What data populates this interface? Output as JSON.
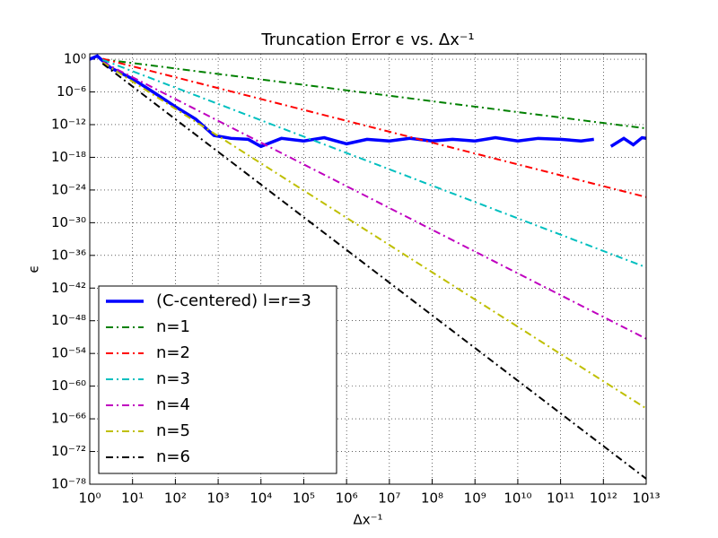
{
  "chart_data": {
    "type": "line",
    "title": "Truncation Error ϵ vs. Δx⁻¹",
    "xlabel": "Δx⁻¹",
    "ylabel": "ϵ",
    "xscale": "log",
    "yscale": "log",
    "grid": true,
    "legend": "lower left",
    "xlim": [
      1,
      10000000000000.0
    ],
    "ylim": [
      1e-78,
      10
    ],
    "xticks": [
      {
        "value": 1,
        "label": "10⁰"
      },
      {
        "value": 10,
        "label": "10¹"
      },
      {
        "value": 100,
        "label": "10²"
      },
      {
        "value": 1000.0,
        "label": "10³"
      },
      {
        "value": 10000.0,
        "label": "10⁴"
      },
      {
        "value": 100000.0,
        "label": "10⁵"
      },
      {
        "value": 1000000.0,
        "label": "10⁶"
      },
      {
        "value": 10000000.0,
        "label": "10⁷"
      },
      {
        "value": 100000000.0,
        "label": "10⁸"
      },
      {
        "value": 1000000000.0,
        "label": "10⁹"
      },
      {
        "value": 10000000000.0,
        "label": "10¹⁰"
      },
      {
        "value": 100000000000.0,
        "label": "10¹¹"
      },
      {
        "value": 1000000000000.0,
        "label": "10¹²"
      },
      {
        "value": 10000000000000.0,
        "label": "10¹³"
      }
    ],
    "yticks": [
      {
        "value": 1,
        "label": "10⁰"
      },
      {
        "value": 1e-06,
        "label": "10⁻⁶"
      },
      {
        "value": 1e-12,
        "label": "10⁻¹²"
      },
      {
        "value": 1e-18,
        "label": "10⁻¹⁸"
      },
      {
        "value": 1e-24,
        "label": "10⁻²⁴"
      },
      {
        "value": 1e-30,
        "label": "10⁻³⁰"
      },
      {
        "value": 1e-36,
        "label": "10⁻³⁶"
      },
      {
        "value": 1e-42,
        "label": "10⁻⁴²"
      },
      {
        "value": 1e-48,
        "label": "10⁻⁴⁸"
      },
      {
        "value": 1e-54,
        "label": "10⁻⁵⁴"
      },
      {
        "value": 1e-60,
        "label": "10⁻⁶⁰"
      },
      {
        "value": 1e-66,
        "label": "10⁻⁶⁶"
      },
      {
        "value": 1e-72,
        "label": "10⁻⁷²"
      },
      {
        "value": 1e-78,
        "label": "10⁻⁷⁸"
      }
    ],
    "series": [
      {
        "name": "(C-centered) l=r=3",
        "color": "#0000ff",
        "style": "solid",
        "x": [
          1,
          1.5,
          3,
          10,
          30,
          100,
          300,
          800,
          2000,
          5000,
          10000.0,
          30000.0,
          100000.0,
          300000.0,
          1000000.0,
          3000000.0,
          10000000.0,
          30000000.0,
          100000000.0,
          300000000.0,
          1000000000.0,
          3000000000.0,
          10000000000.0,
          30000000000.0,
          100000000000.0,
          300000000000.0,
          600000000000.0,
          1000000000000.0,
          1500000000000.0,
          3000000000000.0,
          5000000000000.0,
          8000000000000.0,
          10000000000000.0
        ],
        "values": [
          1,
          4,
          0.03,
          0.00025,
          1e-06,
          2e-09,
          1e-11,
          1e-14,
          3e-15,
          2e-15,
          1e-16,
          3e-15,
          1e-15,
          4e-15,
          3e-16,
          2e-15,
          1e-15,
          3e-15,
          1e-15,
          2e-15,
          1e-15,
          4e-15,
          1e-15,
          3e-15,
          2e-15,
          1e-15,
          2e-15,
          null,
          1e-16,
          3e-15,
          2e-16,
          4e-15,
          3e-15
        ]
      },
      {
        "name": "n=1",
        "color": "#008000",
        "style": "dashdot",
        "x": [
          2,
          10,
          100,
          1000.0,
          10000.0,
          100000.0,
          1000000.0,
          10000000.0,
          100000000.0,
          1000000000.0,
          10000000000.0,
          100000000000.0,
          1000000000000.0,
          10000000000000.0
        ],
        "values": [
          1,
          0.2,
          0.02,
          0.002,
          0.0002,
          2e-05,
          2e-06,
          2e-07,
          2e-08,
          2e-09,
          2e-10,
          2e-11,
          2e-12,
          2e-13
        ]
      },
      {
        "name": "n=2",
        "color": "#ff0000",
        "style": "dashdot",
        "x": [
          2,
          10,
          100,
          1000.0,
          10000.0,
          100000.0,
          1000000.0,
          10000000.0,
          100000000.0,
          1000000000.0,
          10000000000.0,
          100000000000.0,
          1000000000000.0,
          10000000000000.0
        ],
        "values": [
          1.25,
          0.05,
          0.0005,
          5e-06,
          5e-08,
          5e-10,
          5e-12,
          5e-14,
          5e-16,
          5e-18,
          5e-20,
          5e-22,
          5e-24,
          5e-26
        ]
      },
      {
        "name": "n=3",
        "color": "#00bfbf",
        "style": "dashdot",
        "x": [
          2,
          10,
          100,
          1000.0,
          10000.0,
          100000.0,
          1000000.0,
          10000000.0,
          100000000.0,
          1000000000.0,
          10000000000.0,
          100000000000.0,
          1000000000000.0,
          10000000000000.0
        ],
        "values": [
          0.79,
          0.0063,
          6.3e-06,
          6.3e-09,
          6.3e-12,
          6.3e-15,
          6.3e-18,
          6.3e-21,
          6.3e-24,
          6.3e-27,
          6.3e-30,
          6.3e-33,
          6.3e-36,
          6.3e-39
        ]
      },
      {
        "name": "n=4",
        "color": "#bf00bf",
        "style": "dashdot",
        "x": [
          2,
          10,
          100,
          1000.0,
          10000.0,
          100000.0,
          1000000.0,
          10000000.0,
          100000000.0,
          1000000000.0,
          10000000000.0,
          100000000000.0,
          1000000000000.0,
          10000000000000.0
        ],
        "values": [
          0.31,
          0.0005,
          5e-08,
          5e-12,
          5e-16,
          5e-20,
          5e-24,
          5e-28,
          5e-32,
          5e-36,
          5e-40,
          5e-44,
          5e-48,
          5e-52
        ]
      },
      {
        "name": "n=5",
        "color": "#bfbf00",
        "style": "dashdot",
        "x": [
          2,
          10,
          100,
          1000.0,
          10000.0,
          100000.0,
          1000000.0,
          10000000.0,
          100000000.0,
          1000000000.0,
          10000000000.0,
          100000000000.0,
          1000000000000.0,
          10000000000000.0
        ],
        "values": [
          0.25,
          8e-05,
          8e-10,
          8e-15,
          8e-20,
          8e-25,
          8e-30,
          8e-35,
          8e-40,
          8e-45,
          8e-50,
          8e-55,
          8e-60,
          8e-65
        ]
      },
      {
        "name": "n=6",
        "color": "#000000",
        "style": "dashdot",
        "x": [
          2,
          10,
          100,
          1000.0,
          10000.0,
          100000.0,
          1000000.0,
          10000000.0,
          100000000.0,
          1000000000.0,
          10000000000.0,
          100000000000.0,
          1000000000000.0,
          10000000000000.0
        ],
        "values": [
          0.16,
          1e-05,
          1e-11,
          1e-17,
          1e-23,
          1e-29,
          1e-35,
          1e-41,
          1e-47,
          1e-53,
          1e-59,
          1e-65,
          1e-71,
          1e-77
        ]
      }
    ]
  }
}
